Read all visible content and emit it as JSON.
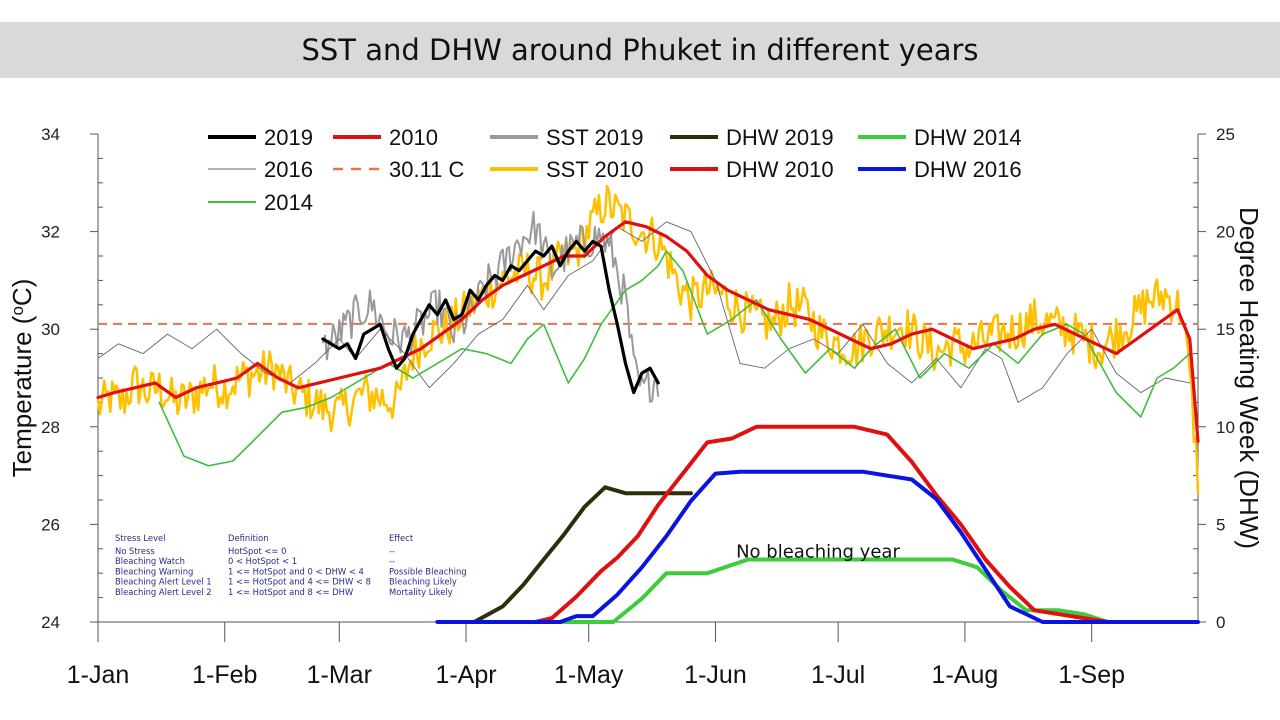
{
  "title": "SST and DHW around Phuket in different years",
  "chart_data": {
    "type": "line",
    "title": "SST and DHW around Phuket in different years",
    "ylabel_left": "Temperature (oC)",
    "ylabel_left_base": "Temperature (",
    "ylabel_left_sup": "o",
    "ylabel_left_tail": "C)",
    "ylabel_right": "Degree Heating Week (DHW)",
    "ylim_left": [
      24,
      34
    ],
    "ylim_right": [
      0,
      25
    ],
    "yticks_left": [
      "24",
      "26",
      "28",
      "30",
      "32",
      "34"
    ],
    "yticks_right": [
      "0",
      "5",
      "10",
      "15",
      "20",
      "25"
    ],
    "x_unit": "day of year",
    "xlim": [
      1,
      270
    ],
    "xticks": [
      {
        "day": 1,
        "label": "1-Jan"
      },
      {
        "day": 32,
        "label": "1-Feb"
      },
      {
        "day": 60,
        "label": "1-Mar"
      },
      {
        "day": 91,
        "label": "1-Apr"
      },
      {
        "day": 121,
        "label": "1-May"
      },
      {
        "day": 152,
        "label": "1-Jun"
      },
      {
        "day": 182,
        "label": "1-Jul"
      },
      {
        "day": 213,
        "label": "1-Aug"
      },
      {
        "day": 244,
        "label": "1-Sep"
      }
    ],
    "threshold": {
      "name": "30.11 C",
      "value": 30.11,
      "color": "#e8734a"
    },
    "grid": false,
    "legend_position": "top",
    "series": [
      {
        "name": "SST 2010",
        "axis": "left",
        "color": "#ffc000",
        "width": 2.5,
        "style": "noisy",
        "x": [
          1,
          4,
          7,
          10,
          13,
          16,
          20,
          24,
          28,
          32,
          36,
          40,
          44,
          48,
          52,
          56,
          60,
          63,
          66,
          70,
          74,
          78,
          82,
          86,
          90,
          94,
          98,
          102,
          106,
          110,
          114,
          118,
          122,
          125,
          128,
          131,
          134,
          137,
          140,
          143,
          146,
          150,
          154,
          158,
          162,
          166,
          170,
          174,
          178,
          182,
          186,
          190,
          194,
          198,
          202,
          206,
          210,
          214,
          218,
          222,
          226,
          230,
          234,
          238,
          242,
          246,
          250,
          254,
          258,
          262,
          266,
          268,
          270
        ],
        "y": [
          28.4,
          28.6,
          28.5,
          28.9,
          28.7,
          28.8,
          28.5,
          28.6,
          28.9,
          28.8,
          29.0,
          29.1,
          29.2,
          28.8,
          28.6,
          28.4,
          28.3,
          28.5,
          28.7,
          28.6,
          28.5,
          29.5,
          29.9,
          30.0,
          30.3,
          30.6,
          30.9,
          31.1,
          31.2,
          31.0,
          31.4,
          31.6,
          32.2,
          32.6,
          32.4,
          32.2,
          32.0,
          31.9,
          31.5,
          30.9,
          30.6,
          30.8,
          30.7,
          30.4,
          30.2,
          30.1,
          30.5,
          30.4,
          29.9,
          29.7,
          29.6,
          29.9,
          30.0,
          30.1,
          29.8,
          29.5,
          29.7,
          29.6,
          29.8,
          29.9,
          30.0,
          30.2,
          30.1,
          30.0,
          29.8,
          29.6,
          29.9,
          30.2,
          30.6,
          30.7,
          30.4,
          29.0,
          27.0
        ]
      },
      {
        "name": "SST 2019",
        "axis": "left",
        "color": "#999999",
        "width": 2,
        "style": "noisy",
        "x": [
          56,
          60,
          64,
          68,
          72,
          76,
          80,
          84,
          88,
          92,
          96,
          100,
          104,
          108,
          112,
          116,
          120,
          124,
          127,
          130,
          132,
          134,
          136,
          138
        ],
        "y": [
          29.6,
          29.9,
          30.3,
          30.5,
          29.9,
          29.8,
          30.1,
          30.5,
          29.9,
          30.3,
          30.9,
          31.3,
          31.8,
          32.1,
          31.2,
          31.6,
          31.8,
          31.9,
          31.5,
          30.6,
          29.2,
          28.7,
          28.9,
          29.0
        ]
      },
      {
        "name": "2016",
        "axis": "left",
        "color": "#666666",
        "width": 0.9,
        "style": "smooth",
        "x": [
          1,
          6,
          12,
          18,
          24,
          30,
          36,
          42,
          48,
          54,
          60,
          64,
          70,
          76,
          82,
          88,
          94,
          100,
          106,
          110,
          116,
          122,
          128,
          134,
          140,
          146,
          152,
          158,
          164,
          170,
          176,
          182,
          188,
          194,
          200,
          206,
          212,
          218,
          222,
          226,
          232,
          238,
          244,
          250,
          256,
          262,
          268
        ],
        "y": [
          29.4,
          29.7,
          29.5,
          29.9,
          29.6,
          30.0,
          29.5,
          29.1,
          28.9,
          29.3,
          29.8,
          29.4,
          30.0,
          29.5,
          28.8,
          29.3,
          29.9,
          30.2,
          30.9,
          30.4,
          31.1,
          31.4,
          32.1,
          31.8,
          32.2,
          32.0,
          31.0,
          29.3,
          29.2,
          29.6,
          29.8,
          29.5,
          30.1,
          29.3,
          28.9,
          29.4,
          28.8,
          29.6,
          29.4,
          28.5,
          28.8,
          29.5,
          30.0,
          29.1,
          28.7,
          29.0,
          28.9
        ]
      },
      {
        "name": "2014",
        "axis": "left",
        "color": "#3fbd3f",
        "width": 1.6,
        "style": "smooth",
        "x": [
          16,
          22,
          28,
          34,
          40,
          46,
          52,
          58,
          62,
          66,
          72,
          78,
          84,
          90,
          96,
          102,
          106,
          110,
          116,
          120,
          124,
          130,
          134,
          138,
          140,
          144,
          150,
          156,
          162,
          168,
          174,
          180,
          186,
          190,
          196,
          202,
          208,
          214,
          220,
          226,
          232,
          238,
          242,
          246,
          250,
          256,
          260,
          264,
          268
        ],
        "y": [
          28.5,
          27.4,
          27.2,
          27.3,
          27.8,
          28.3,
          28.4,
          28.6,
          28.8,
          29.0,
          29.3,
          29.0,
          29.3,
          29.6,
          29.5,
          29.3,
          29.8,
          30.1,
          28.9,
          29.4,
          30.1,
          30.8,
          31.0,
          31.3,
          31.6,
          31.2,
          29.9,
          30.2,
          30.6,
          29.8,
          29.1,
          29.6,
          29.2,
          29.6,
          30.0,
          29.0,
          29.5,
          29.2,
          29.7,
          29.3,
          29.9,
          30.1,
          29.9,
          29.3,
          28.7,
          28.2,
          29.0,
          29.2,
          29.5
        ]
      },
      {
        "name": "2010",
        "axis": "left",
        "color": "#e01010",
        "width": 3.2,
        "style": "smooth",
        "x": [
          1,
          5,
          10,
          15,
          20,
          25,
          30,
          35,
          40,
          45,
          50,
          55,
          60,
          65,
          70,
          75,
          80,
          85,
          90,
          95,
          100,
          105,
          110,
          115,
          120,
          125,
          130,
          135,
          140,
          145,
          150,
          155,
          160,
          165,
          170,
          175,
          180,
          185,
          190,
          195,
          200,
          205,
          210,
          215,
          220,
          225,
          230,
          235,
          240,
          245,
          250,
          255,
          260,
          265,
          268,
          270
        ],
        "y": [
          28.6,
          28.7,
          28.8,
          28.9,
          28.6,
          28.8,
          28.9,
          29.0,
          29.3,
          29.0,
          28.8,
          28.9,
          29.0,
          29.1,
          29.2,
          29.4,
          29.6,
          29.9,
          30.2,
          30.6,
          30.9,
          31.1,
          31.3,
          31.5,
          31.5,
          31.9,
          32.2,
          32.1,
          31.9,
          31.6,
          31.1,
          30.8,
          30.6,
          30.4,
          30.3,
          30.2,
          30.0,
          29.8,
          29.6,
          29.7,
          29.9,
          30.0,
          29.8,
          29.6,
          29.7,
          29.8,
          30.0,
          30.1,
          29.9,
          29.7,
          29.5,
          29.8,
          30.1,
          30.4,
          29.8,
          27.7
        ]
      },
      {
        "name": "2019",
        "axis": "left",
        "color": "#000000",
        "width": 3.2,
        "style": "smooth",
        "x": [
          56,
          60,
          62,
          64,
          66,
          68,
          70,
          72,
          74,
          76,
          78,
          80,
          82,
          84,
          86,
          88,
          90,
          92,
          94,
          96,
          98,
          100,
          102,
          104,
          106,
          108,
          110,
          112,
          114,
          116,
          118,
          120,
          122,
          124,
          126,
          128,
          130,
          132,
          134,
          136,
          138
        ],
        "y": [
          29.8,
          29.6,
          29.7,
          29.4,
          29.9,
          30.0,
          30.1,
          29.6,
          29.2,
          29.4,
          29.9,
          30.2,
          30.5,
          30.3,
          30.6,
          30.2,
          30.3,
          30.8,
          30.6,
          30.9,
          31.1,
          31.0,
          31.3,
          31.2,
          31.4,
          31.6,
          31.5,
          31.7,
          31.3,
          31.6,
          31.8,
          31.6,
          31.8,
          31.7,
          30.8,
          30.1,
          29.3,
          28.7,
          29.1,
          29.2,
          28.9
        ]
      },
      {
        "name": "DHW 2019",
        "axis": "right",
        "color": "#2e2e0f",
        "width": 4,
        "x": [
          93,
          100,
          105,
          110,
          115,
          120,
          125,
          130,
          133,
          140,
          146
        ],
        "y": [
          0,
          0.8,
          1.9,
          3.2,
          4.5,
          5.9,
          6.9,
          6.6,
          6.6,
          6.6,
          6.6
        ]
      },
      {
        "name": "DHW 2014",
        "axis": "right",
        "color": "#3ccc3c",
        "width": 4,
        "x": [
          95,
          120,
          127,
          134,
          140,
          146,
          150,
          160,
          170,
          180,
          190,
          200,
          210,
          216,
          222,
          228,
          232,
          236,
          242,
          248
        ],
        "y": [
          0,
          0,
          0,
          1.2,
          2.5,
          2.5,
          2.5,
          3.2,
          3.2,
          3.2,
          3.2,
          3.2,
          3.2,
          2.8,
          1.6,
          0.6,
          0.6,
          0.6,
          0.4,
          0
        ]
      },
      {
        "name": "DHW 2010",
        "axis": "right",
        "color": "#e01010",
        "width": 4,
        "x": [
          100,
          108,
          112,
          118,
          124,
          128,
          133,
          138,
          144,
          150,
          156,
          162,
          166,
          170,
          178,
          186,
          190,
          194,
          200,
          206,
          212,
          218,
          224,
          230,
          236,
          242,
          248
        ],
        "y": [
          0,
          0,
          0.2,
          1.3,
          2.6,
          3.3,
          4.4,
          6.0,
          7.6,
          9.2,
          9.4,
          10.0,
          10.0,
          10.0,
          10.0,
          10.0,
          9.8,
          9.6,
          8.2,
          6.5,
          5.0,
          3.2,
          1.8,
          0.6,
          0.4,
          0.2,
          0
        ]
      },
      {
        "name": "DHW 2016",
        "axis": "right",
        "color": "#0a14e0",
        "width": 4,
        "x": [
          84,
          110,
          114,
          118,
          122,
          128,
          134,
          140,
          146,
          152,
          158,
          162,
          170,
          180,
          188,
          194,
          200,
          206,
          212,
          218,
          224,
          232,
          240,
          250,
          260,
          270
        ],
        "y": [
          0,
          0,
          0,
          0.3,
          0.3,
          1.4,
          2.8,
          4.4,
          6.2,
          7.6,
          7.7,
          7.7,
          7.7,
          7.7,
          7.7,
          7.5,
          7.3,
          6.3,
          4.6,
          2.7,
          0.8,
          0,
          0,
          0,
          0,
          0
        ]
      }
    ],
    "legend": [
      {
        "label": "2019",
        "color": "#000000",
        "style": "solid"
      },
      {
        "label": "2010",
        "color": "#e01010",
        "style": "solid"
      },
      {
        "label": "SST 2019",
        "color": "#999999",
        "style": "solid"
      },
      {
        "label": "DHW 2019",
        "color": "#2e2e0f",
        "style": "solid"
      },
      {
        "label": "DHW 2014",
        "color": "#3ccc3c",
        "style": "solid"
      },
      {
        "label": "2016",
        "color": "#666666",
        "style": "thin"
      },
      {
        "label": "30.11 C",
        "color": "#e8734a",
        "style": "dashed"
      },
      {
        "label": "SST 2010",
        "color": "#ffc000",
        "style": "solid"
      },
      {
        "label": "DHW 2010",
        "color": "#e01010",
        "style": "solid"
      },
      {
        "label": "DHW 2016",
        "color": "#0a14e0",
        "style": "solid"
      },
      {
        "label": "2014",
        "color": "#3fbd3f",
        "style": "medium"
      }
    ],
    "annotations": [
      {
        "text": "No bleaching year",
        "day": 180,
        "dhw": 3.6
      }
    ],
    "stress_table": {
      "headers": [
        "Stress Level",
        "Definition",
        "Effect"
      ],
      "rows": [
        [
          "No Stress",
          "HotSpot <= 0",
          "--"
        ],
        [
          "Bleaching Watch",
          "0 < HotSpot < 1",
          "--"
        ],
        [
          "Bleaching Warning",
          "1 <= HotSpot and 0 < DHW < 4",
          "Possible Bleaching"
        ],
        [
          "Bleaching Alert Level 1",
          "1 <= HotSpot and 4 <= DHW < 8",
          "Bleaching Likely"
        ],
        [
          "Bleaching Alert Level 2",
          "1 <= HotSpot and 8 <= DHW",
          "Mortality Likely"
        ]
      ]
    }
  }
}
